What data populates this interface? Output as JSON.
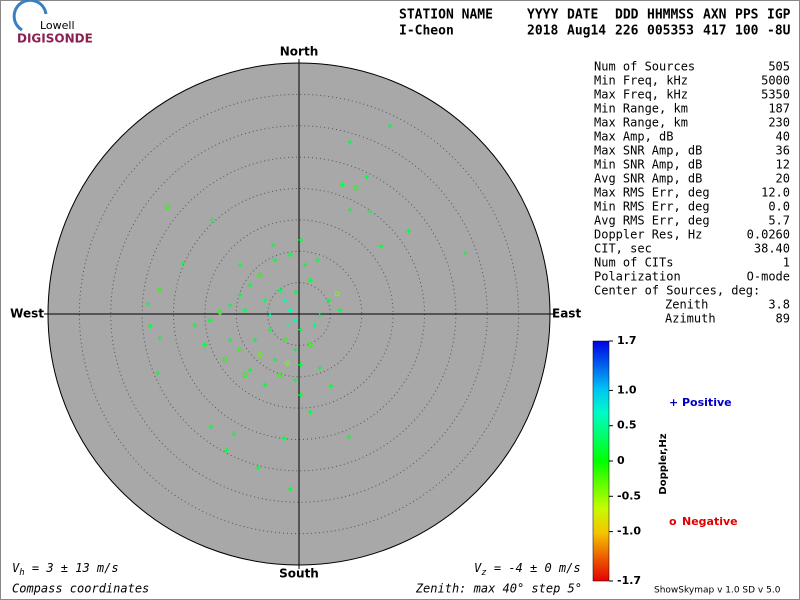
{
  "chart_data": {
    "type": "skymap",
    "logo": {
      "top": "Lowell",
      "bottom": "DIGISONDE"
    },
    "header": {
      "columns": [
        "STATION NAME",
        "YYYY",
        "DATE",
        "DDD",
        "HHMMSS",
        "AXN",
        "PPS",
        "IGP"
      ],
      "values": [
        "I-Cheon",
        "2018",
        "Aug14",
        "226",
        "005353",
        "417",
        "100",
        "-8U"
      ]
    },
    "compass": {
      "north": "North",
      "south": "South",
      "east": "East",
      "west": "West"
    },
    "rlim": [
      0,
      40
    ],
    "rticks": [
      5,
      10,
      15,
      20,
      25,
      30,
      35
    ],
    "stats": [
      [
        "Num of Sources",
        "505"
      ],
      [
        "Min Freq, kHz",
        "5000"
      ],
      [
        "Max Freq, kHz",
        "5350"
      ],
      [
        "Min Range, km",
        "187"
      ],
      [
        "Max Range, km",
        "230"
      ],
      [
        "Max Amp, dB",
        "40"
      ],
      [
        "Max SNR Amp, dB",
        "36"
      ],
      [
        "Min SNR Amp, dB",
        "12"
      ],
      [
        "Avg SNR Amp, dB",
        "20"
      ],
      [
        "Max RMS Err, deg",
        "12.0"
      ],
      [
        "Min RMS Err, deg",
        "0.0"
      ],
      [
        "Avg RMS Err, deg",
        "5.7"
      ],
      [
        "Doppler Res, Hz",
        "0.0260"
      ],
      [
        "CIT, sec",
        "38.40"
      ],
      [
        "Num of CITs",
        "1"
      ],
      [
        "Polarization",
        "O-mode"
      ]
    ],
    "center": {
      "title": "Center of Sources, deg:",
      "rows": [
        [
          "Zenith",
          "3.8"
        ],
        [
          "Azimuth",
          "89"
        ]
      ]
    },
    "colorbar": {
      "label": "Doppler,Hz",
      "lim": [
        -1.7,
        1.7
      ],
      "ticks": [
        1.7,
        {
          "value": 1,
          "label": "1.0"
        },
        0.5,
        0,
        -0.5,
        {
          "value": -1,
          "label": "-1.0"
        },
        -1.7
      ]
    },
    "legend": {
      "positive": {
        "symbol": "+",
        "label": "Positive",
        "color": "#0000c0"
      },
      "negative": {
        "symbol": "o",
        "label": "Negative",
        "color": "#e00000"
      }
    },
    "vh": {
      "symbol": "V",
      "sub": "h",
      "text": " = 3 ± 13 m/s"
    },
    "vz": {
      "symbol": "V",
      "sub": "z",
      "text": " = -4 ± 0 m/s"
    },
    "coords": "Compass coordinates",
    "zenith_note": "Zenith: max 40°  step 5°",
    "version": "ShowSkymap v 1.0   SD v 5.0",
    "points": {
      "x": [
        14.5,
        8.1,
        10.8,
        6.9,
        9.1,
        8.1,
        11.3,
        17.5,
        26.5,
        13.1,
        -20.9,
        -13.9,
        -18.5,
        -24.1,
        -22.2,
        -23.7,
        -22.2,
        -22.5,
        -14.0,
        -10.4,
        -11.5,
        -6.5,
        -2.4,
        -1.4,
        8.0,
        1.8,
        5.1,
        3.3,
        6.1,
        6.5,
        4.8,
        0.2,
        -1.4,
        1.0,
        -3.8,
        -6.2,
        -7.8,
        -9.4,
        -11.0,
        -12.6,
        -14.2,
        -8.6,
        -5.4,
        -3.0,
        -1.4,
        -0.6,
        -1.8,
        0.2,
        -2.2,
        -4.6,
        -7.0,
        -9.4,
        -11.0,
        -6.2,
        -3.8,
        -0.6,
        0.2,
        -3.0,
        -7.8,
        1.8,
        2.5,
        3.3,
        -11.8,
        -15.0,
        -16.6,
        -4.6,
        -2.2,
        -0.5,
        1.8,
        3.0,
        -4.1,
        -9.4,
        -5.4,
        -8.6,
        -0.6,
        0.2,
        -1.8
      ],
      "y": [
        30.0,
        27.4,
        21.8,
        20.6,
        20.1,
        16.6,
        16.3,
        13.2,
        9.7,
        10.8,
        17.1,
        15.0,
        8.0,
        1.6,
        3.8,
        -1.9,
        -3.8,
        -9.4,
        -18.0,
        -19.1,
        -21.7,
        -24.5,
        -19.8,
        -27.9,
        -19.6,
        -15.6,
        -11.5,
        -8.6,
        3.2,
        0.6,
        2.2,
        11.8,
        9.4,
        7.8,
        8.6,
        6.2,
        4.6,
        3.0,
        1.4,
        0.3,
        -1.0,
        0.6,
        2.2,
        3.8,
        0.6,
        -1.0,
        -1.8,
        -2.5,
        -4.1,
        -2.5,
        -4.1,
        -5.7,
        -4.1,
        -6.5,
        -7.3,
        -5.7,
        -8.1,
        -9.7,
        -8.9,
        -4.9,
        -1.8,
        -0.2,
        -7.3,
        -4.9,
        -1.8,
        -0.2,
        2.2,
        3.5,
        5.4,
        8.6,
        11.0,
        7.8,
        -11.3,
        -9.7,
        -10.5,
        -12.9,
        -7.8
      ],
      "doppler": [
        0.2,
        0.2,
        0.2,
        0.2,
        -0.1,
        0.2,
        0.2,
        0.2,
        0.2,
        0.2,
        -0.1,
        0.2,
        0.2,
        0.2,
        -0.1,
        0.2,
        0.2,
        0.2,
        0.2,
        0.2,
        0.2,
        0.2,
        0.2,
        0.2,
        0.2,
        0.2,
        0.2,
        0.2,
        -0.4,
        0.2,
        0.2,
        0.2,
        0.2,
        0.2,
        0.2,
        -0.1,
        0.2,
        0.2,
        0.2,
        -0.1,
        0.2,
        0.3,
        0.3,
        0.3,
        0.6,
        0.6,
        0.6,
        0.2,
        -0.1,
        0.2,
        0.2,
        -0.1,
        0.2,
        -0.3,
        0.2,
        0.2,
        0.2,
        -0.1,
        0.2,
        -0.1,
        0.4,
        0.3,
        -0.1,
        0.2,
        0.2,
        0.6,
        0.6,
        0.2,
        0.2,
        0.2,
        0.2,
        0.2,
        0.2,
        -0.1,
        0.2,
        0.2,
        -0.4
      ]
    }
  }
}
